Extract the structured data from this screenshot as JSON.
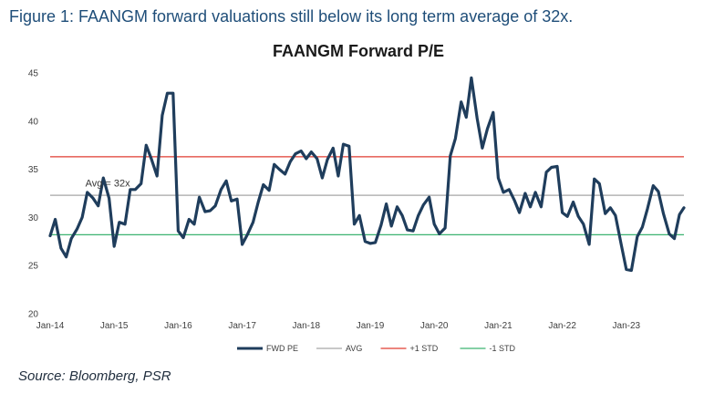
{
  "figure_title": "Figure 1: FAANGM forward valuations still below its long term average of 32x.",
  "source": "Source: Bloomberg, PSR",
  "colors": {
    "fwd_pe": "#1f3d5c",
    "avg": "#a6a6a6",
    "plus_std": "#e03c31",
    "minus_std": "#3cb371",
    "title_blue": "#1f4e79"
  },
  "chart_data": {
    "type": "line",
    "title": "FAANGM Forward P/E",
    "xlabel": "",
    "ylabel": "",
    "ylim": [
      20,
      45
    ],
    "yticks": [
      20,
      25,
      30,
      35,
      40,
      45
    ],
    "xlim": [
      2014.0,
      2023.9
    ],
    "xticks": [
      {
        "label": "Jan-14",
        "x": 2014.0
      },
      {
        "label": "Jan-15",
        "x": 2015.0
      },
      {
        "label": "Jan-16",
        "x": 2016.0
      },
      {
        "label": "Jan-17",
        "x": 2017.0
      },
      {
        "label": "Jan-18",
        "x": 2018.0
      },
      {
        "label": "Jan-19",
        "x": 2019.0
      },
      {
        "label": "Jan-20",
        "x": 2020.0
      },
      {
        "label": "Jan-21",
        "x": 2021.0
      },
      {
        "label": "Jan-22",
        "x": 2022.0
      },
      {
        "label": "Jan-23",
        "x": 2023.0
      }
    ],
    "grid": false,
    "legend_position": "bottom",
    "series": [
      {
        "name": "FWD PE",
        "x": [
          2014.0,
          2014.08,
          2014.17,
          2014.25,
          2014.33,
          2014.42,
          2014.5,
          2014.58,
          2014.67,
          2014.75,
          2014.83,
          2014.92,
          2015.0,
          2015.08,
          2015.17,
          2015.25,
          2015.33,
          2015.42,
          2015.5,
          2015.58,
          2015.67,
          2015.75,
          2015.83,
          2015.92,
          2016.0,
          2016.08,
          2016.17,
          2016.25,
          2016.33,
          2016.42,
          2016.5,
          2016.58,
          2016.67,
          2016.75,
          2016.83,
          2016.92,
          2017.0,
          2017.08,
          2017.17,
          2017.25,
          2017.33,
          2017.42,
          2017.5,
          2017.58,
          2017.67,
          2017.75,
          2017.83,
          2017.92,
          2018.0,
          2018.08,
          2018.17,
          2018.25,
          2018.33,
          2018.42,
          2018.5,
          2018.58,
          2018.67,
          2018.75,
          2018.83,
          2018.92,
          2019.0,
          2019.08,
          2019.17,
          2019.25,
          2019.33,
          2019.42,
          2019.5,
          2019.58,
          2019.67,
          2019.75,
          2019.83,
          2019.92,
          2020.0,
          2020.08,
          2020.17,
          2020.25,
          2020.33,
          2020.42,
          2020.5,
          2020.58,
          2020.67,
          2020.75,
          2020.83,
          2020.92,
          2021.0,
          2021.08,
          2021.17,
          2021.25,
          2021.33,
          2021.42,
          2021.5,
          2021.58,
          2021.67,
          2021.75,
          2021.83,
          2021.92,
          2022.0,
          2022.08,
          2022.17,
          2022.25,
          2022.33,
          2022.42,
          2022.5,
          2022.58,
          2022.67,
          2022.75,
          2022.83,
          2022.92,
          2023.0,
          2023.08,
          2023.17,
          2023.25,
          2023.33,
          2023.42,
          2023.5,
          2023.58,
          2023.67,
          2023.75,
          2023.83,
          2023.9
        ],
        "values": [
          28.1,
          29.8,
          26.8,
          25.9,
          27.8,
          28.8,
          30.0,
          32.6,
          32.0,
          31.2,
          34.1,
          32.0,
          27.0,
          29.5,
          29.3,
          32.9,
          32.9,
          33.5,
          37.5,
          36.1,
          34.3,
          40.6,
          42.9,
          42.9,
          28.6,
          27.9,
          29.8,
          29.3,
          32.1,
          30.6,
          30.7,
          31.2,
          32.9,
          33.8,
          31.7,
          31.9,
          27.2,
          28.2,
          29.5,
          31.6,
          33.4,
          32.8,
          35.5,
          35.0,
          34.5,
          35.8,
          36.6,
          36.9,
          36.1,
          36.8,
          36.1,
          34.1,
          36.0,
          37.2,
          34.3,
          37.6,
          37.4,
          29.3,
          30.2,
          27.5,
          27.3,
          27.4,
          29.2,
          31.4,
          29.1,
          31.1,
          30.2,
          28.7,
          28.6,
          30.2,
          31.3,
          32.1,
          29.3,
          28.3,
          28.9,
          36.4,
          38.2,
          42.0,
          40.4,
          44.5,
          40.3,
          37.2,
          39.2,
          40.9,
          34.1,
          32.6,
          32.9,
          31.8,
          30.5,
          32.5,
          31.1,
          32.6,
          31.1,
          34.7,
          35.2,
          35.3,
          30.5,
          30.1,
          31.6,
          30.1,
          29.3,
          27.2,
          34.0,
          33.5,
          30.4,
          31.0,
          30.2,
          27.2,
          24.6,
          24.5,
          28.0,
          29.0,
          30.9,
          33.3,
          32.7,
          30.4,
          28.3,
          27.8,
          30.3,
          31.0
        ]
      },
      {
        "name": "AVG",
        "constant": 32.3
      },
      {
        "name": "+1 STD",
        "constant": 36.3
      },
      {
        "name": "-1 STD",
        "constant": 28.2
      }
    ],
    "annotations": [
      {
        "text": "Avg = 32x",
        "x": 2014.55,
        "y": 33.2
      }
    ]
  }
}
